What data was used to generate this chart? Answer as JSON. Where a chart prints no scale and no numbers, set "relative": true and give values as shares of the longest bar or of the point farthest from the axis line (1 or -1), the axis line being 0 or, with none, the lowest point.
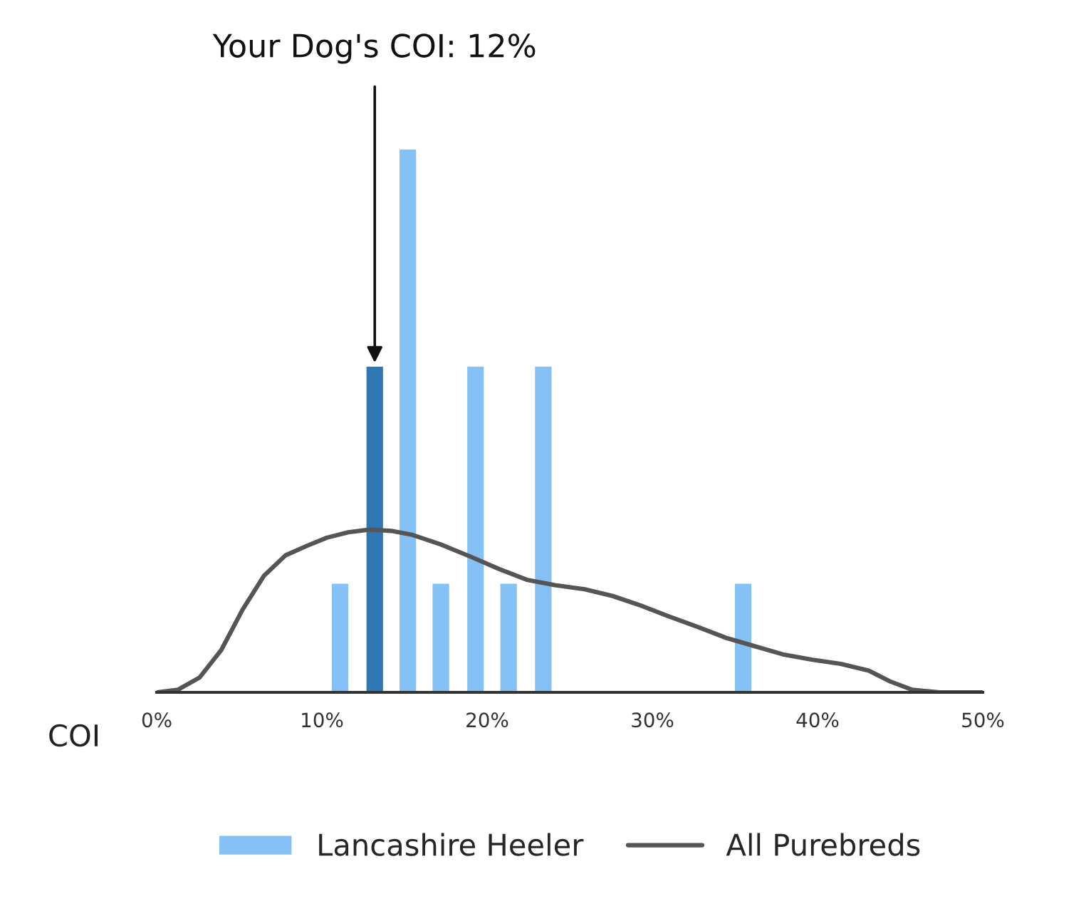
{
  "chart_data": {
    "type": "bar",
    "relative": true,
    "xlabel": "COI",
    "legend": "bottom",
    "xlim": [
      0,
      50
    ],
    "xticks": [
      {
        "value": 0,
        "label": "0%"
      },
      {
        "value": 10,
        "label": "10%"
      },
      {
        "value": 20,
        "label": "20%"
      },
      {
        "value": 30,
        "label": "30%"
      },
      {
        "value": 40,
        "label": "40%"
      },
      {
        "value": 50,
        "label": "50%"
      }
    ],
    "annotations": [
      {
        "text": "Your Dog's COI: 12%",
        "x": 13.2,
        "y": 0.6
      }
    ],
    "series": [
      {
        "name": "Lancashire Heeler",
        "color": "#85c1f5",
        "x": [
          11.1,
          13.2,
          15.2,
          17.2,
          19.3,
          21.3,
          23.4,
          35.5
        ],
        "values": [
          0.2,
          0.6,
          1,
          0.2,
          0.6,
          0.2,
          0.6,
          0.2
        ],
        "colors": [
          "#85c1f5",
          "#2f78b5",
          "#85c1f5",
          "#85c1f5",
          "#85c1f5",
          "#85c1f5",
          "#85c1f5",
          "#85c1f5"
        ]
      },
      {
        "name": "All Purebreds",
        "type": "line",
        "color": "#555555",
        "x": [
          0,
          1.3,
          2.6,
          3.9,
          5.2,
          6.5,
          7.8,
          9.1,
          10.3,
          11.6,
          12.9,
          14.2,
          15.5,
          17.2,
          19.0,
          20.7,
          22.4,
          24.1,
          25.9,
          27.6,
          29.3,
          31.0,
          32.8,
          34.5,
          36.2,
          37.9,
          39.7,
          41.4,
          43.1,
          44.4,
          45.7,
          47.4,
          50
        ],
        "values": [
          0,
          0.005,
          0.0275,
          0.0775,
          0.1525,
          0.215,
          0.2525,
          0.27,
          0.285,
          0.295,
          0.3,
          0.2975,
          0.29,
          0.2725,
          0.25,
          0.2275,
          0.2075,
          0.1975,
          0.19,
          0.1775,
          0.16,
          0.14,
          0.12,
          0.1,
          0.085,
          0.07,
          0.06,
          0.0525,
          0.04,
          0.02,
          0.005,
          0,
          0
        ]
      }
    ]
  }
}
